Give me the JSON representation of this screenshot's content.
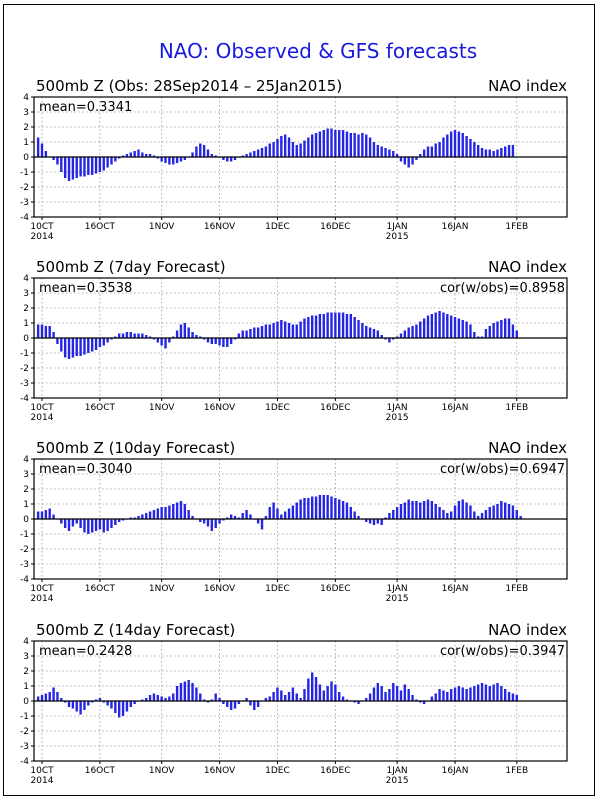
{
  "page_title": "NAO: Observed & GFS forecasts",
  "colors": {
    "title": "#1a1adf",
    "bar": "#2525e6",
    "axis": "#000000",
    "grid": "#9a9a9a"
  },
  "chart_data": [
    {
      "type": "bar",
      "title": "500mb  Z  (Obs: 28Sep2014 – 25Jan2015)",
      "right_label": "NAO index",
      "mean_label": "mean=0.3341",
      "cor_label": "",
      "ylim": [
        -4,
        4
      ],
      "yticks": [
        "4",
        "3",
        "2",
        "1",
        "0",
        "-1",
        "-2",
        "-3",
        "-4"
      ],
      "xticks": [
        {
          "label": "10CT",
          "sub": "2014",
          "day": 0
        },
        {
          "label": "16OCT",
          "sub": "",
          "day": 15
        },
        {
          "label": "1NOV",
          "sub": "",
          "day": 31
        },
        {
          "label": "16NOV",
          "sub": "",
          "day": 46
        },
        {
          "label": "1DEC",
          "sub": "",
          "day": 61
        },
        {
          "label": "16DEC",
          "sub": "",
          "day": 76
        },
        {
          "label": "1JAN",
          "sub": "2015",
          "day": 92
        },
        {
          "label": "16JAN",
          "sub": "",
          "day": 107
        },
        {
          "label": "1FEB",
          "sub": "",
          "day": 123
        }
      ],
      "start_day": -3,
      "values": [
        1.6,
        1.5,
        1.3,
        0.9,
        0.4,
        0.0,
        -0.2,
        -0.5,
        -1.0,
        -1.4,
        -1.6,
        -1.5,
        -1.4,
        -1.3,
        -1.3,
        -1.2,
        -1.2,
        -1.1,
        -1.0,
        -0.9,
        -0.7,
        -0.5,
        -0.3,
        -0.1,
        0.1,
        0.2,
        0.3,
        0.4,
        0.5,
        0.3,
        0.2,
        0.2,
        0.1,
        -0.1,
        -0.3,
        -0.4,
        -0.5,
        -0.5,
        -0.4,
        -0.3,
        -0.2,
        0.0,
        0.3,
        0.7,
        0.9,
        0.8,
        0.5,
        0.2,
        0.1,
        0.0,
        -0.2,
        -0.3,
        -0.3,
        -0.2,
        0.0,
        0.1,
        0.2,
        0.3,
        0.4,
        0.5,
        0.6,
        0.7,
        0.9,
        1.0,
        1.2,
        1.4,
        1.5,
        1.3,
        1.0,
        0.8,
        0.9,
        1.1,
        1.3,
        1.5,
        1.6,
        1.7,
        1.8,
        1.9,
        1.9,
        1.8,
        1.8,
        1.8,
        1.7,
        1.6,
        1.6,
        1.5,
        1.6,
        1.5,
        1.3,
        1.0,
        0.8,
        0.7,
        0.6,
        0.5,
        0.4,
        0.2,
        -0.3,
        -0.5,
        -0.7,
        -0.5,
        -0.2,
        0.2,
        0.5,
        0.7,
        0.7,
        0.9,
        1.0,
        1.3,
        1.5,
        1.7,
        1.8,
        1.7,
        1.6,
        1.4,
        1.2,
        1.0,
        0.8,
        0.6,
        0.5,
        0.5,
        0.4,
        0.5,
        0.6,
        0.7,
        0.8,
        0.8
      ]
    },
    {
      "type": "bar",
      "title": "500mb  Z  (7day Forecast)",
      "right_label": "NAO index",
      "mean_label": "mean=0.3538",
      "cor_label": "cor(w/obs)=0.8958",
      "ylim": [
        -4,
        4
      ],
      "yticks": [
        "4",
        "3",
        "2",
        "1",
        "0",
        "-1",
        "-2",
        "-3",
        "-4"
      ],
      "xticks": [
        {
          "label": "10CT",
          "sub": "2014",
          "day": 0
        },
        {
          "label": "16OCT",
          "sub": "",
          "day": 15
        },
        {
          "label": "1NOV",
          "sub": "",
          "day": 31
        },
        {
          "label": "16NOV",
          "sub": "",
          "day": 46
        },
        {
          "label": "1DEC",
          "sub": "",
          "day": 61
        },
        {
          "label": "16DEC",
          "sub": "",
          "day": 76
        },
        {
          "label": "1JAN",
          "sub": "2015",
          "day": 92
        },
        {
          "label": "16JAN",
          "sub": "",
          "day": 107
        },
        {
          "label": "1FEB",
          "sub": "",
          "day": 123
        }
      ],
      "start_day": -3,
      "values": [
        1.0,
        1.0,
        0.9,
        0.9,
        0.8,
        0.8,
        0.4,
        -0.4,
        -0.9,
        -1.3,
        -1.4,
        -1.3,
        -1.2,
        -1.2,
        -1.1,
        -1.0,
        -0.9,
        -0.8,
        -0.6,
        -0.5,
        -0.3,
        -0.1,
        0.1,
        0.3,
        0.3,
        0.4,
        0.4,
        0.3,
        0.3,
        0.3,
        0.2,
        0.1,
        -0.1,
        -0.3,
        -0.5,
        -0.7,
        -0.3,
        0.1,
        0.5,
        0.9,
        1.0,
        0.7,
        0.4,
        0.2,
        0.1,
        -0.1,
        -0.3,
        -0.4,
        -0.4,
        -0.5,
        -0.6,
        -0.6,
        -0.4,
        -0.1,
        0.3,
        0.5,
        0.5,
        0.6,
        0.7,
        0.7,
        0.8,
        0.9,
        0.9,
        1.0,
        1.1,
        1.2,
        1.1,
        1.0,
        0.9,
        0.9,
        1.1,
        1.3,
        1.4,
        1.5,
        1.5,
        1.6,
        1.6,
        1.7,
        1.7,
        1.7,
        1.7,
        1.7,
        1.6,
        1.6,
        1.4,
        1.2,
        1.0,
        0.8,
        0.7,
        0.6,
        0.5,
        0.2,
        -0.1,
        -0.3,
        -0.1,
        0.1,
        0.3,
        0.5,
        0.7,
        0.8,
        0.9,
        1.1,
        1.3,
        1.5,
        1.6,
        1.7,
        1.8,
        1.7,
        1.6,
        1.5,
        1.4,
        1.3,
        1.2,
        1.1,
        0.9,
        0.4,
        0.1,
        0.1,
        0.6,
        0.8,
        1.0,
        1.1,
        1.2,
        1.3,
        1.3,
        0.9,
        0.5
      ]
    },
    {
      "type": "bar",
      "title": "500mb  Z  (10day Forecast)",
      "right_label": "NAO index",
      "mean_label": "mean=0.3040",
      "cor_label": "cor(w/obs)=0.6947",
      "ylim": [
        -4,
        4
      ],
      "yticks": [
        "4",
        "3",
        "2",
        "1",
        "0",
        "-1",
        "-2",
        "-3",
        "-4"
      ],
      "xticks": [
        {
          "label": "10CT",
          "sub": "2014",
          "day": 0
        },
        {
          "label": "16OCT",
          "sub": "",
          "day": 15
        },
        {
          "label": "1NOV",
          "sub": "",
          "day": 31
        },
        {
          "label": "16NOV",
          "sub": "",
          "day": 46
        },
        {
          "label": "1DEC",
          "sub": "",
          "day": 61
        },
        {
          "label": "16DEC",
          "sub": "",
          "day": 76
        },
        {
          "label": "1JAN",
          "sub": "2015",
          "day": 92
        },
        {
          "label": "16JAN",
          "sub": "",
          "day": 107
        },
        {
          "label": "1FEB",
          "sub": "",
          "day": 123
        }
      ],
      "start_day": -3,
      "values": [
        0.3,
        0.4,
        0.5,
        0.5,
        0.6,
        0.7,
        0.3,
        0.0,
        -0.3,
        -0.6,
        -0.8,
        -0.5,
        -0.3,
        -0.6,
        -0.9,
        -1.0,
        -0.9,
        -0.8,
        -0.7,
        -0.9,
        -0.8,
        -0.6,
        -0.4,
        -0.2,
        -0.1,
        0.0,
        0.1,
        0.1,
        0.2,
        0.3,
        0.4,
        0.5,
        0.6,
        0.7,
        0.8,
        0.8,
        0.9,
        1.0,
        1.1,
        1.2,
        1.0,
        0.6,
        0.2,
        0.0,
        -0.2,
        -0.3,
        -0.5,
        -0.8,
        -0.6,
        -0.3,
        -0.1,
        0.1,
        0.3,
        0.2,
        0.1,
        0.4,
        0.6,
        0.3,
        0.0,
        -0.3,
        -0.7,
        0.2,
        0.8,
        1.1,
        0.7,
        0.3,
        0.5,
        0.7,
        0.9,
        1.1,
        1.3,
        1.4,
        1.4,
        1.5,
        1.5,
        1.6,
        1.6,
        1.6,
        1.5,
        1.4,
        1.3,
        1.2,
        1.1,
        0.8,
        0.5,
        0.2,
        0.0,
        -0.2,
        -0.3,
        -0.4,
        -0.3,
        -0.4,
        0.1,
        0.4,
        0.6,
        0.8,
        1.0,
        1.1,
        1.3,
        1.2,
        1.2,
        1.1,
        1.2,
        1.3,
        1.2,
        1.0,
        0.8,
        0.6,
        0.4,
        0.5,
        0.9,
        1.2,
        1.3,
        1.1,
        0.9,
        0.5,
        0.2,
        0.4,
        0.6,
        0.8,
        0.9,
        1.0,
        1.2,
        1.1,
        1.0,
        0.9,
        0.6,
        0.2
      ]
    },
    {
      "type": "bar",
      "title": "500mb  Z  (14day Forecast)",
      "right_label": "NAO index",
      "mean_label": "mean=0.2428",
      "cor_label": "cor(w/obs)=0.3947",
      "ylim": [
        -4,
        4
      ],
      "yticks": [
        "4",
        "3",
        "2",
        "1",
        "0",
        "-1",
        "-2",
        "-3",
        "-4"
      ],
      "xticks": [
        {
          "label": "10CT",
          "sub": "2014",
          "day": 0
        },
        {
          "label": "16OCT",
          "sub": "",
          "day": 15
        },
        {
          "label": "1NOV",
          "sub": "",
          "day": 31
        },
        {
          "label": "16NOV",
          "sub": "",
          "day": 46
        },
        {
          "label": "1DEC",
          "sub": "",
          "day": 61
        },
        {
          "label": "16DEC",
          "sub": "",
          "day": 76
        },
        {
          "label": "1JAN",
          "sub": "2015",
          "day": 92
        },
        {
          "label": "16JAN",
          "sub": "",
          "day": 107
        },
        {
          "label": "1FEB",
          "sub": "",
          "day": 123
        }
      ],
      "start_day": -3,
      "values": [
        0.5,
        0.4,
        0.3,
        0.4,
        0.5,
        0.6,
        0.9,
        0.6,
        0.2,
        -0.1,
        -0.4,
        -0.5,
        -0.7,
        -0.9,
        -0.6,
        -0.3,
        -0.1,
        0.1,
        0.2,
        -0.1,
        -0.3,
        -0.5,
        -0.8,
        -1.1,
        -1.0,
        -0.7,
        -0.4,
        -0.2,
        0.0,
        0.1,
        0.2,
        0.4,
        0.5,
        0.4,
        0.3,
        0.2,
        0.3,
        0.5,
        1.0,
        1.2,
        1.3,
        1.4,
        1.2,
        0.9,
        0.5,
        0.1,
        -0.1,
        0.1,
        0.5,
        0.2,
        -0.2,
        -0.4,
        -0.6,
        -0.5,
        -0.2,
        0.0,
        0.2,
        -0.3,
        -0.6,
        -0.4,
        0.0,
        0.2,
        0.3,
        0.6,
        0.9,
        0.7,
        0.4,
        0.6,
        0.9,
        0.5,
        0.2,
        0.8,
        1.5,
        1.9,
        1.6,
        1.1,
        0.7,
        1.0,
        1.3,
        1.1,
        0.6,
        0.3,
        0.1,
        0.0,
        -0.1,
        -0.2,
        0.0,
        0.2,
        0.5,
        0.9,
        1.2,
        1.0,
        0.6,
        0.8,
        1.2,
        1.0,
        0.7,
        1.1,
        0.8,
        0.4,
        0.1,
        -0.1,
        -0.2,
        0.0,
        0.3,
        0.5,
        0.8,
        0.7,
        0.6,
        0.8,
        0.9,
        1.0,
        0.9,
        0.8,
        0.9,
        1.0,
        1.1,
        1.2,
        1.1,
        1.0,
        1.1,
        1.2,
        1.0,
        0.8,
        0.6,
        0.5,
        0.4
      ]
    }
  ]
}
